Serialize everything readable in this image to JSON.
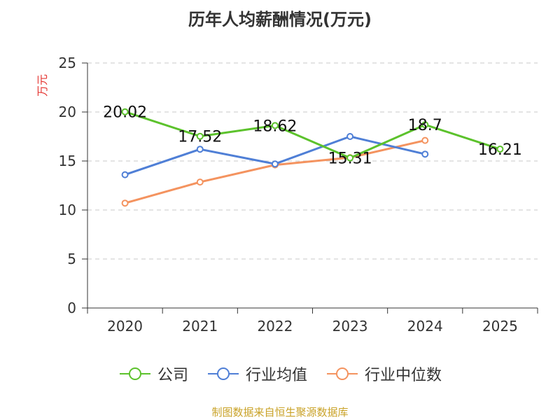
{
  "chart_data": {
    "type": "line",
    "title": "历年人均薪酬情况(万元)",
    "ylabel": "万元",
    "xlabel": "",
    "categories": [
      "2020",
      "2021",
      "2022",
      "2023",
      "2024",
      "2025"
    ],
    "ylim": [
      0,
      25
    ],
    "yticks": [
      "0",
      "5",
      "10",
      "15",
      "20",
      "25"
    ],
    "grid": true,
    "legend_position": "bottom",
    "series": [
      {
        "name": "公司",
        "color": "#5cc22c",
        "values": [
          20.02,
          17.52,
          18.62,
          15.31,
          18.7,
          16.21
        ],
        "labels": [
          "20.02",
          "17.52",
          "18.62",
          "15.31",
          "18.7",
          "16.21"
        ]
      },
      {
        "name": "行业均值",
        "color": "#4f7fd6",
        "values": [
          13.6,
          16.2,
          14.7,
          17.5,
          15.7,
          null
        ]
      },
      {
        "name": "行业中位数",
        "color": "#f4935f",
        "values": [
          10.7,
          12.85,
          14.6,
          15.35,
          17.1,
          null
        ]
      }
    ]
  },
  "source": {
    "text": "制图数据来自恒生聚源数据库",
    "color": "#c9a227"
  },
  "ylabel_color": "#e53935"
}
